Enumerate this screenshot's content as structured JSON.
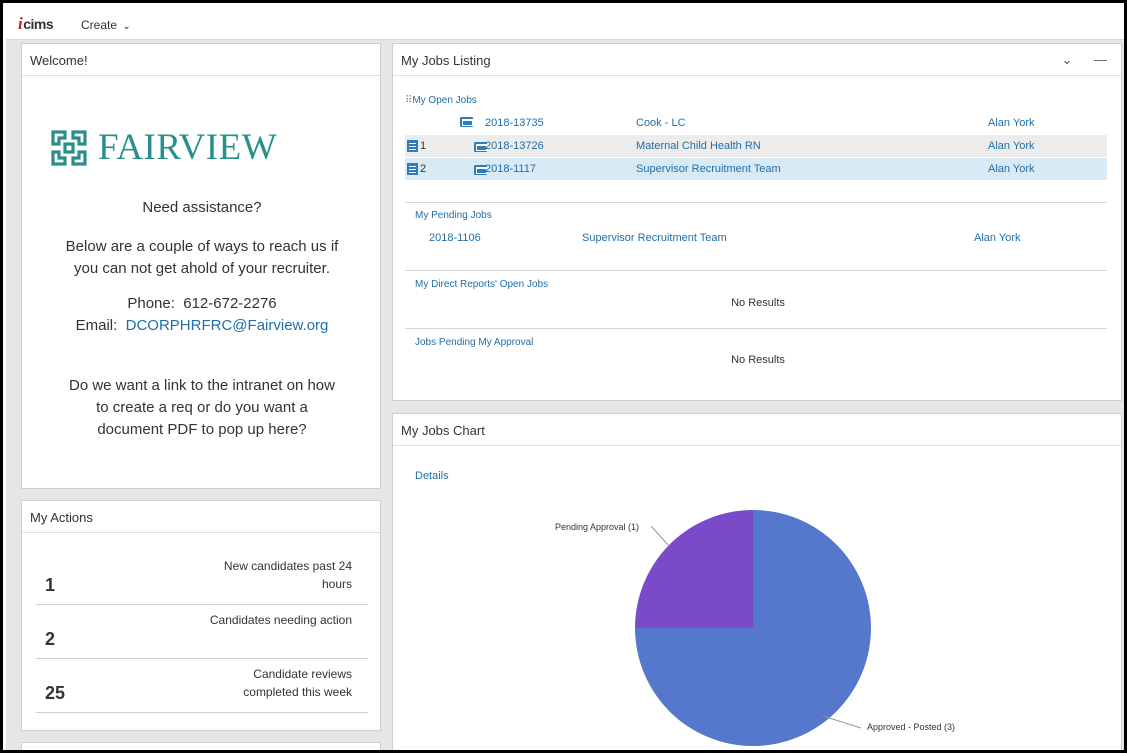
{
  "topbar": {
    "logo_i": "i",
    "logo_text": "CIMS",
    "create_label": "Create",
    "create_chevron": "⌄"
  },
  "welcome": {
    "title": "Welcome!",
    "brand_name": "FAIRVIEW",
    "brand_color": "#2a8f8a",
    "assist_heading": "Need assistance?",
    "assist_line1": "Below are a couple of ways to reach us if",
    "assist_line2": "you can not get ahold of your recruiter.",
    "phone_label": "Phone:",
    "phone": "612-672-2276",
    "email_label": "Email:",
    "email": "DCORPHRFRC@Fairview.org",
    "note_line1": "Do we want a link to the intranet on how",
    "note_line2": "to create a req or do you want a",
    "note_line3": "document PDF to pop up here?"
  },
  "actions": {
    "title": "My Actions",
    "rows": [
      {
        "count": "1",
        "label": "New candidates past 24 hours"
      },
      {
        "count": "2",
        "label": "Candidates needing action"
      },
      {
        "count": "25",
        "label": "Candidate reviews completed this week"
      }
    ]
  },
  "jobs": {
    "title": "My Jobs Listing",
    "collapse_icon": "⌄",
    "minimize_icon": "—",
    "open_jobs_label": "My Open Jobs",
    "open_jobs": [
      {
        "badge": "",
        "req": "2018-13735",
        "title": "Cook - LC",
        "owner": "Alan York"
      },
      {
        "badge": "1",
        "req": "2018-13726",
        "title": "Maternal Child Health RN",
        "owner": "Alan York"
      },
      {
        "badge": "2",
        "req": "2018-1117",
        "title": "Supervisor Recruitment Team",
        "owner": "Alan York"
      }
    ],
    "pending_label": "My Pending Jobs",
    "pending_jobs": [
      {
        "req": "2018-1106",
        "title": "Supervisor Recruitment Team",
        "owner": "Alan York"
      }
    ],
    "direct_reports_label": "My Direct Reports' Open Jobs",
    "direct_reports_result": "No Results",
    "approval_label": "Jobs Pending My Approval",
    "approval_result": "No Results"
  },
  "jobs_chart": {
    "title": "My Jobs Chart",
    "details_link": "Details"
  },
  "chart_data": {
    "type": "pie",
    "title": "",
    "slices": [
      {
        "label": "Approved - Posted (3)",
        "value": 3,
        "color": "#5577cc"
      },
      {
        "label": "Pending Approval (1)",
        "value": 1,
        "color": "#7a4bc8"
      }
    ]
  }
}
